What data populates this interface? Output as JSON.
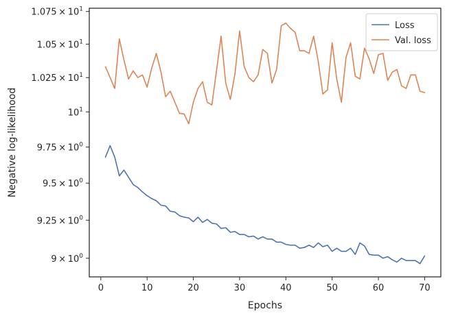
{
  "chart_data": {
    "type": "line",
    "title": "",
    "xlabel": "Epochs",
    "ylabel": "Negative log-likelihood",
    "xlim": [
      -2.5,
      73.5
    ],
    "ylim": [
      8.88,
      10.775
    ],
    "yscale": "log",
    "grid": false,
    "legend_position": "top-right",
    "x_ticks": [
      0,
      10,
      20,
      30,
      40,
      50,
      60,
      70
    ],
    "y_ticks": [
      {
        "value": 9.0,
        "label": "9 × 10^0"
      },
      {
        "value": 9.25,
        "label": "9.25 × 10^0"
      },
      {
        "value": 9.5,
        "label": "9.5 × 10^0"
      },
      {
        "value": 9.75,
        "label": "9.75 × 10^0"
      },
      {
        "value": 10.0,
        "label": "10^1"
      },
      {
        "value": 10.25,
        "label": "1.025 × 10^1"
      },
      {
        "value": 10.5,
        "label": "1.05 × 10^1"
      },
      {
        "value": 10.75,
        "label": "1.075 × 10^1"
      }
    ],
    "x": [
      1,
      2,
      3,
      4,
      5,
      6,
      7,
      8,
      9,
      10,
      11,
      12,
      13,
      14,
      15,
      16,
      17,
      18,
      19,
      20,
      21,
      22,
      23,
      24,
      25,
      26,
      27,
      28,
      29,
      30,
      31,
      32,
      33,
      34,
      35,
      36,
      37,
      38,
      39,
      40,
      41,
      42,
      43,
      44,
      45,
      46,
      47,
      48,
      49,
      50,
      51,
      52,
      53,
      54,
      55,
      56,
      57,
      58,
      59,
      60,
      61,
      62,
      63,
      64,
      65,
      66,
      67,
      68,
      69,
      70
    ],
    "series": [
      {
        "name": "Loss",
        "color": "#4c72b0",
        "values": [
          9.68,
          9.76,
          9.68,
          9.55,
          9.59,
          9.54,
          9.49,
          9.47,
          9.44,
          9.415,
          9.395,
          9.38,
          9.35,
          9.345,
          9.31,
          9.305,
          9.28,
          9.27,
          9.265,
          9.24,
          9.27,
          9.235,
          9.255,
          9.23,
          9.225,
          9.195,
          9.2,
          9.17,
          9.175,
          9.155,
          9.155,
          9.14,
          9.145,
          9.125,
          9.14,
          9.125,
          9.125,
          9.105,
          9.105,
          9.09,
          9.085,
          9.085,
          9.065,
          9.07,
          9.085,
          9.07,
          9.1,
          9.075,
          9.085,
          9.045,
          9.065,
          9.045,
          9.045,
          9.065,
          9.025,
          9.1,
          9.08,
          9.025,
          9.02,
          9.02,
          9.0,
          9.01,
          8.99,
          8.975,
          9.0,
          8.985,
          8.985,
          8.985,
          8.965,
          9.015
        ]
      },
      {
        "name": "Val. loss",
        "color": "#dd8452",
        "values": [
          10.33,
          10.25,
          10.17,
          10.54,
          10.38,
          10.24,
          10.3,
          10.25,
          10.27,
          10.18,
          10.32,
          10.43,
          10.29,
          10.11,
          10.15,
          10.07,
          9.99,
          9.985,
          9.915,
          10.07,
          10.17,
          10.22,
          10.07,
          10.05,
          10.3,
          10.56,
          10.21,
          10.09,
          10.28,
          10.6,
          10.33,
          10.25,
          10.22,
          10.27,
          10.46,
          10.43,
          10.21,
          10.31,
          10.64,
          10.66,
          10.62,
          10.59,
          10.45,
          10.45,
          10.43,
          10.56,
          10.37,
          10.13,
          10.16,
          10.51,
          10.24,
          10.07,
          10.4,
          10.51,
          10.26,
          10.24,
          10.47,
          10.39,
          10.28,
          10.42,
          10.43,
          10.23,
          10.29,
          10.31,
          10.19,
          10.17,
          10.27,
          10.27,
          10.15,
          10.14
        ]
      }
    ]
  }
}
